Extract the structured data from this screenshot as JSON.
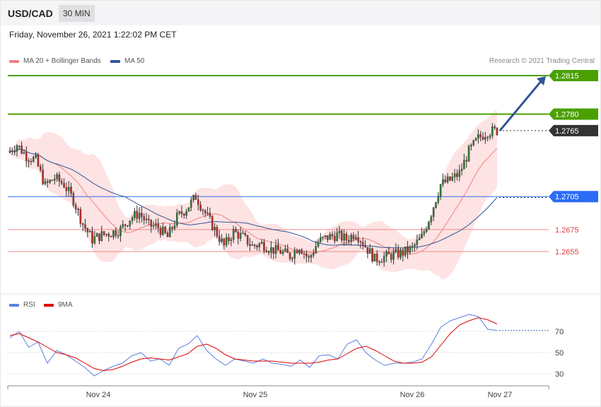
{
  "header": {
    "symbol": "USD/CAD",
    "timeframe": "30 MIN"
  },
  "timestamp": "Friday, November 26, 2021 1:22:02 PM CET",
  "legend": {
    "ma20": {
      "label": "MA 20 + Bollinger Bands",
      "color": "#f08080"
    },
    "ma50": {
      "label": "MA 50",
      "color": "#2f5597"
    }
  },
  "credit": "Research © 2021 Trading Central",
  "rsi_legend": {
    "rsi": {
      "label": "RSI",
      "color": "#5b7fdc"
    },
    "ma9": {
      "label": "9MA",
      "color": "#e00000"
    }
  },
  "levels": [
    {
      "label": "1.2815",
      "value": 1.2815,
      "color": "#4aa000",
      "style": "box-green"
    },
    {
      "label": "1.2780",
      "value": 1.278,
      "color": "#4aa000",
      "style": "box-green"
    },
    {
      "label": "1.2765",
      "value": 1.2765,
      "color": "#333333",
      "style": "box-dark"
    },
    {
      "label": "1.2705",
      "value": 1.2705,
      "color": "#2a6cf5",
      "style": "box-blue"
    },
    {
      "label": "1.2675",
      "value": 1.2675,
      "color": "#e04040",
      "style": "text-red"
    },
    {
      "label": "1.2655",
      "value": 1.2655,
      "color": "#e04040",
      "style": "text-red"
    }
  ],
  "rsi_levels": [
    "70",
    "50",
    "30"
  ],
  "x_labels": [
    "Nov 24",
    "Nov 25",
    "Nov 26",
    "Nov 27"
  ],
  "chart_data": {
    "type": "candlestick",
    "x_axis": [
      "Nov 24",
      "Nov 25",
      "Nov 26",
      "Nov 27"
    ],
    "price_levels": [
      1.2815,
      1.278,
      1.2765,
      1.2705,
      1.2675,
      1.2655
    ],
    "close_path": [
      1.2745,
      1.2752,
      1.2742,
      1.2738,
      1.2715,
      1.2722,
      1.2716,
      1.2702,
      1.268,
      1.2666,
      1.267,
      1.2672,
      1.2675,
      1.2685,
      1.269,
      1.2679,
      1.2677,
      1.2668,
      1.2686,
      1.2694,
      1.2705,
      1.269,
      1.2675,
      1.266,
      1.2673,
      1.2668,
      1.266,
      1.2662,
      1.2657,
      1.2655,
      1.2651,
      1.266,
      1.2648,
      1.2664,
      1.2668,
      1.267,
      1.2666,
      1.2672,
      1.266,
      1.2648,
      1.265,
      1.2652,
      1.2654,
      1.2658,
      1.2668,
      1.269,
      1.2716,
      1.272,
      1.2726,
      1.2746,
      1.2758,
      1.2764,
      1.2765
    ],
    "annotation": "projected path to 1.2815",
    "rsi": {
      "levels": [
        70,
        50,
        30
      ],
      "series": [
        {
          "name": "RSI",
          "values": [
            64,
            70,
            55,
            60,
            40,
            52,
            48,
            42,
            36,
            28,
            33,
            37,
            40,
            47,
            50,
            42,
            44,
            38,
            54,
            58,
            66,
            52,
            44,
            38,
            44,
            42,
            40,
            44,
            40,
            39,
            37,
            43,
            36,
            47,
            48,
            44,
            58,
            62,
            50,
            43,
            38,
            40,
            40,
            41,
            44,
            58,
            74,
            80,
            83,
            86,
            84,
            72,
            71
          ]
        },
        {
          "name": "9MA",
          "values": [
            66,
            68,
            64,
            60,
            55,
            50,
            48,
            45,
            40,
            35,
            33,
            34,
            37,
            41,
            44,
            45,
            44,
            43,
            46,
            49,
            56,
            58,
            54,
            48,
            44,
            43,
            42,
            42,
            42,
            41,
            40,
            40,
            40,
            41,
            43,
            44,
            49,
            54,
            56,
            52,
            47,
            42,
            40,
            40,
            41,
            46,
            57,
            68,
            76,
            80,
            83,
            81,
            77
          ]
        }
      ]
    }
  }
}
